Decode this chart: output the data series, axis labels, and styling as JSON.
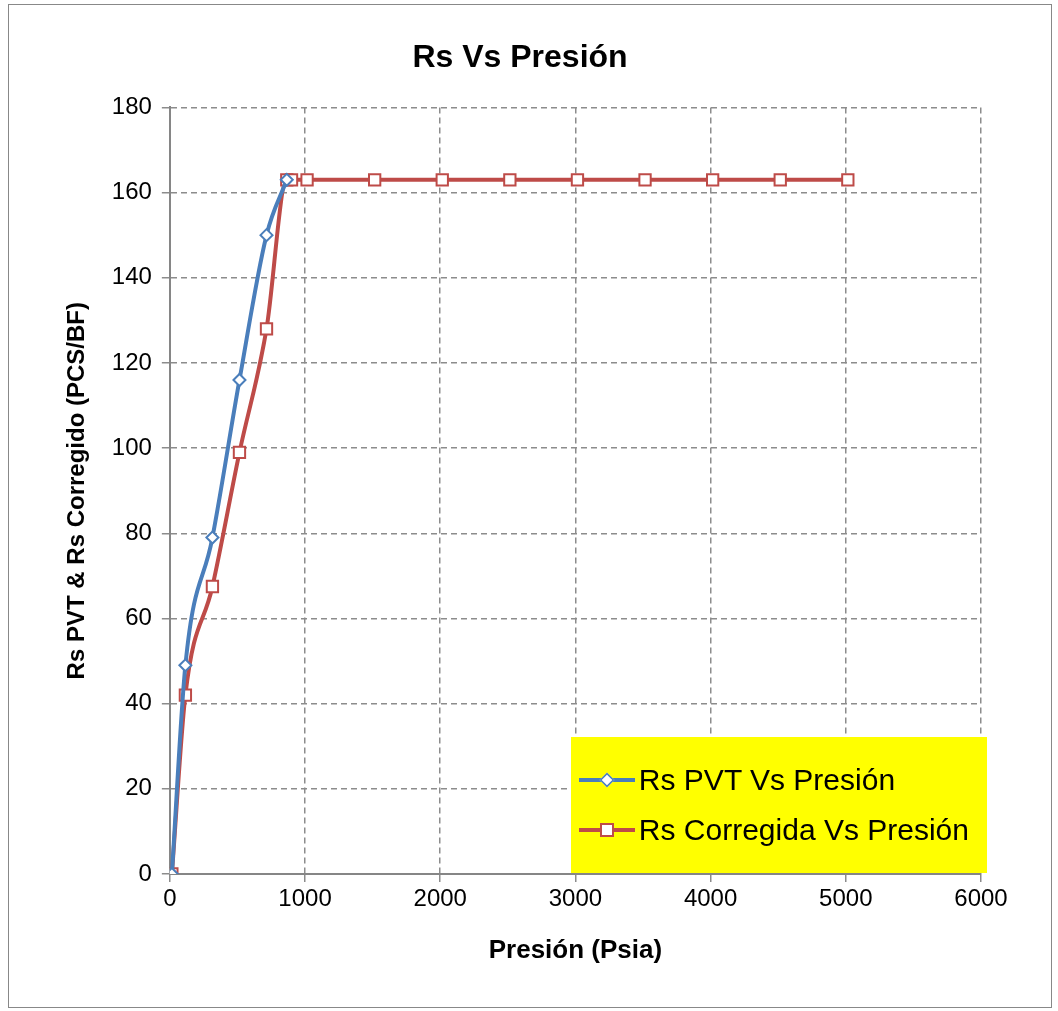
{
  "chart_data": {
    "type": "line",
    "title": "Rs Vs Presión",
    "xlabel": "Presión (Psia)",
    "ylabel": "Rs PVT & Rs Corregido (PCS/BF)",
    "xlim": [
      0,
      6000
    ],
    "xticks": [
      0,
      1000,
      2000,
      3000,
      4000,
      5000,
      6000
    ],
    "ylim": [
      0,
      180
    ],
    "yticks": [
      0,
      20,
      40,
      60,
      80,
      100,
      120,
      140,
      160,
      180
    ],
    "grid": true,
    "legend": "bottom right",
    "line_style": "solid",
    "series": [
      {
        "name": "Rs PVT Vs Presión",
        "color": "#4a7ebb",
        "marker": "diamond",
        "x": [
          15,
          115,
          315,
          515,
          715,
          865
        ],
        "values": [
          0,
          49,
          79,
          116,
          150,
          163
        ]
      },
      {
        "name": "Rs Corregida Vs Presión",
        "color": "#be4b48",
        "marker": "square",
        "x": [
          15,
          115,
          315,
          515,
          715,
          865,
          900,
          1015,
          1515,
          2015,
          2515,
          3015,
          3515,
          4015,
          4515,
          5015
        ],
        "values": [
          0,
          42,
          67.5,
          99,
          128,
          163,
          163,
          163,
          163,
          163,
          163,
          163,
          163,
          163,
          163,
          163
        ]
      }
    ]
  }
}
